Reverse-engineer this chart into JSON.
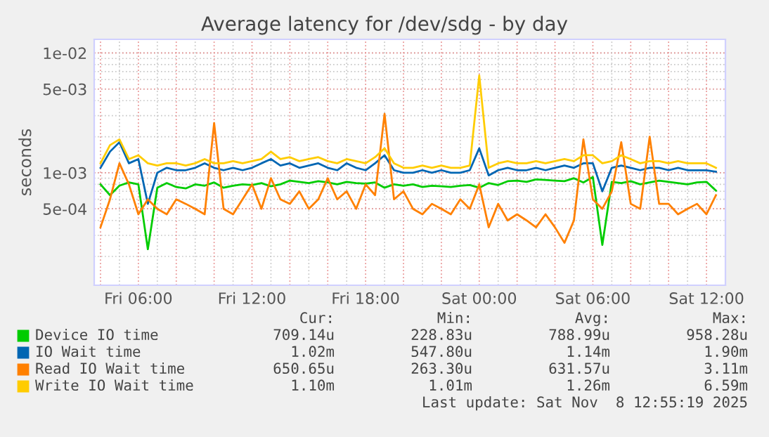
{
  "chart_data": {
    "type": "line",
    "title": "Average latency for /dev/sdg - by day",
    "ylabel": "seconds",
    "x": [
      "2025-11-07T04:00",
      "2025-11-07T04:30",
      "2025-11-07T05:00",
      "2025-11-07T05:30",
      "2025-11-07T06:00",
      "2025-11-07T06:30",
      "2025-11-07T07:00",
      "2025-11-07T07:30",
      "2025-11-07T08:00",
      "2025-11-07T08:30",
      "2025-11-07T09:00",
      "2025-11-07T09:30",
      "2025-11-07T10:00",
      "2025-11-07T10:30",
      "2025-11-07T11:00",
      "2025-11-07T11:30",
      "2025-11-07T12:00",
      "2025-11-07T12:30",
      "2025-11-07T13:00",
      "2025-11-07T13:30",
      "2025-11-07T14:00",
      "2025-11-07T14:30",
      "2025-11-07T15:00",
      "2025-11-07T15:30",
      "2025-11-07T16:00",
      "2025-11-07T16:30",
      "2025-11-07T17:00",
      "2025-11-07T17:30",
      "2025-11-07T18:00",
      "2025-11-07T18:30",
      "2025-11-07T19:00",
      "2025-11-07T19:30",
      "2025-11-07T20:00",
      "2025-11-07T20:30",
      "2025-11-07T21:00",
      "2025-11-07T21:30",
      "2025-11-07T22:00",
      "2025-11-07T22:30",
      "2025-11-07T23:00",
      "2025-11-07T23:30",
      "2025-11-08T00:00",
      "2025-11-08T00:30",
      "2025-11-08T01:00",
      "2025-11-08T01:30",
      "2025-11-08T02:00",
      "2025-11-08T02:30",
      "2025-11-08T03:00",
      "2025-11-08T03:30",
      "2025-11-08T04:00",
      "2025-11-08T04:30",
      "2025-11-08T05:00",
      "2025-11-08T05:30",
      "2025-11-08T06:00",
      "2025-11-08T06:30",
      "2025-11-08T07:00",
      "2025-11-08T07:30",
      "2025-11-08T08:00",
      "2025-11-08T08:30",
      "2025-11-08T09:00",
      "2025-11-08T09:30",
      "2025-11-08T10:00",
      "2025-11-08T10:30",
      "2025-11-08T11:00",
      "2025-11-08T11:30",
      "2025-11-08T12:00",
      "2025-11-08T12:30"
    ],
    "series": [
      {
        "name": "Device IO time",
        "color": "#00cc00",
        "values": [
          0.0008,
          0.00065,
          0.00078,
          0.00083,
          0.0008,
          0.00023,
          0.00075,
          0.00082,
          0.00076,
          0.00074,
          0.0008,
          0.00078,
          0.00083,
          0.00075,
          0.00078,
          0.0008,
          0.00079,
          0.00082,
          0.00077,
          0.0008,
          0.00086,
          0.00084,
          0.00082,
          0.00085,
          0.00083,
          0.0008,
          0.00084,
          0.00082,
          0.00081,
          0.00083,
          0.00075,
          0.0008,
          0.00078,
          0.0008,
          0.00076,
          0.00078,
          0.00077,
          0.00076,
          0.00078,
          0.00079,
          0.00075,
          0.00082,
          0.00079,
          0.00085,
          0.00086,
          0.00084,
          0.00088,
          0.00087,
          0.00086,
          0.00085,
          0.0009,
          0.00083,
          0.00092,
          0.00025,
          0.00084,
          0.00082,
          0.00085,
          0.0008,
          0.00083,
          0.00086,
          0.00084,
          0.00082,
          0.0008,
          0.00083,
          0.00084,
          0.00071
        ]
      },
      {
        "name": "IO Wait time",
        "color": "#0066b3",
        "values": [
          0.0011,
          0.0015,
          0.0018,
          0.0012,
          0.0013,
          0.00055,
          0.001,
          0.0011,
          0.00105,
          0.00105,
          0.0011,
          0.0012,
          0.0011,
          0.00105,
          0.0011,
          0.00105,
          0.0011,
          0.0012,
          0.0013,
          0.00115,
          0.0012,
          0.0011,
          0.00115,
          0.0012,
          0.0011,
          0.00105,
          0.0012,
          0.0011,
          0.00105,
          0.0012,
          0.0014,
          0.00105,
          0.001,
          0.001,
          0.00105,
          0.001,
          0.00105,
          0.001,
          0.001,
          0.00105,
          0.0016,
          0.00095,
          0.00105,
          0.0011,
          0.00105,
          0.00105,
          0.0011,
          0.00105,
          0.0011,
          0.00115,
          0.0011,
          0.0012,
          0.0012,
          0.0007,
          0.0011,
          0.00115,
          0.0011,
          0.00105,
          0.0011,
          0.0011,
          0.00105,
          0.0011,
          0.00105,
          0.00105,
          0.00105,
          0.00102
        ]
      },
      {
        "name": "Read IO Wait time",
        "color": "#ff8000",
        "values": [
          0.00035,
          0.0006,
          0.0012,
          0.0008,
          0.00045,
          0.0006,
          0.0005,
          0.00045,
          0.0006,
          0.00055,
          0.0005,
          0.00045,
          0.0026,
          0.0005,
          0.00045,
          0.0006,
          0.0008,
          0.0005,
          0.0009,
          0.0006,
          0.00055,
          0.0007,
          0.0005,
          0.0006,
          0.0009,
          0.0006,
          0.0007,
          0.0005,
          0.0008,
          0.00065,
          0.0031,
          0.0006,
          0.0007,
          0.0005,
          0.00045,
          0.00055,
          0.0005,
          0.00045,
          0.0006,
          0.0005,
          0.0008,
          0.00035,
          0.00055,
          0.0004,
          0.00045,
          0.0004,
          0.00035,
          0.00045,
          0.00035,
          0.00026,
          0.0004,
          0.0019,
          0.0006,
          0.0005,
          0.0007,
          0.0018,
          0.00055,
          0.0005,
          0.002,
          0.00055,
          0.00055,
          0.00045,
          0.0005,
          0.00055,
          0.00045,
          0.00065
        ]
      },
      {
        "name": "Write IO Wait time",
        "color": "#ffcc00",
        "values": [
          0.0012,
          0.0017,
          0.0019,
          0.0013,
          0.0014,
          0.0012,
          0.00115,
          0.0012,
          0.0012,
          0.00115,
          0.0012,
          0.0013,
          0.0012,
          0.0012,
          0.00125,
          0.0012,
          0.00125,
          0.0013,
          0.0015,
          0.0013,
          0.00135,
          0.00125,
          0.0013,
          0.00135,
          0.00125,
          0.0012,
          0.0013,
          0.00125,
          0.0012,
          0.00135,
          0.0016,
          0.0012,
          0.0011,
          0.0011,
          0.00115,
          0.0011,
          0.00115,
          0.0011,
          0.0011,
          0.00115,
          0.0065,
          0.0011,
          0.0012,
          0.00125,
          0.0012,
          0.0012,
          0.00125,
          0.0012,
          0.00125,
          0.0013,
          0.00125,
          0.0014,
          0.0014,
          0.0012,
          0.00125,
          0.0014,
          0.0013,
          0.0012,
          0.00125,
          0.00125,
          0.0012,
          0.00125,
          0.0012,
          0.0012,
          0.0012,
          0.0011
        ]
      }
    ],
    "log": "y",
    "xlim": [
      "2025-11-07T03:40",
      "2025-11-08T13:00"
    ],
    "xticks": [
      {
        "value": "2025-11-07T06:00",
        "label": "Fri 06:00"
      },
      {
        "value": "2025-11-07T12:00",
        "label": "Fri 12:00"
      },
      {
        "value": "2025-11-07T18:00",
        "label": "Fri 18:00"
      },
      {
        "value": "2025-11-08T00:00",
        "label": "Sat 00:00"
      },
      {
        "value": "2025-11-08T06:00",
        "label": "Sat 06:00"
      },
      {
        "value": "2025-11-08T12:00",
        "label": "Sat 12:00"
      }
    ],
    "ylim": [
      0.000115,
      0.013
    ],
    "yticks": [
      {
        "value": 0.01,
        "label": "1e-02"
      },
      {
        "value": 0.005,
        "label": "5e-03"
      },
      {
        "value": 0.001,
        "label": "1e-03"
      },
      {
        "value": 0.0005,
        "label": "5e-04"
      }
    ],
    "grid": true,
    "legend": "bottom",
    "annotations": [
      "Cur:",
      "Min:",
      "Avg:",
      "Max:",
      "709.14u",
      "228.83u",
      "788.99u",
      "958.28u",
      "1.02m",
      "547.80u",
      "1.14m",
      "1.90m",
      "650.65u",
      "263.30u",
      "631.57u",
      "3.11m",
      "1.10m",
      "1.01m",
      "1.26m",
      "6.59m",
      "Last update: Sat Nov  8 12:55:19 2025"
    ]
  }
}
